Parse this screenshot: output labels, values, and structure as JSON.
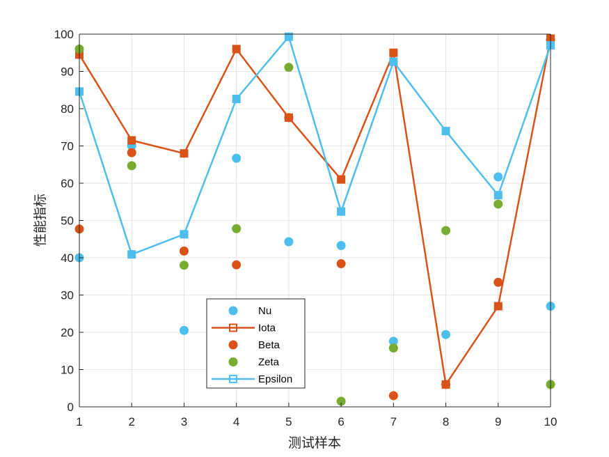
{
  "chart_data": {
    "type": "line",
    "title": "",
    "xlabel": "测试样本",
    "ylabel": "性能指标",
    "x": [
      1,
      2,
      3,
      4,
      5,
      6,
      7,
      8,
      9,
      10
    ],
    "xlim": [
      1,
      10
    ],
    "ylim": [
      0,
      100
    ],
    "xticks": [
      "1",
      "2",
      "3",
      "4",
      "5",
      "6",
      "7",
      "8",
      "9",
      "10"
    ],
    "yticks": [
      "0",
      "10",
      "20",
      "30",
      "40",
      "50",
      "60",
      "70",
      "80",
      "90",
      "100"
    ],
    "grid": true,
    "legend_position": "bottom-center",
    "series": [
      {
        "name": "Nu",
        "style": "scatter",
        "color": "#4DBEEE",
        "values": [
          40,
          70,
          20.5,
          66.7,
          44.3,
          43.3,
          17.6,
          19.4,
          61.7,
          27
        ]
      },
      {
        "name": "Iota",
        "style": "line-square",
        "color": "#D95319",
        "values": [
          94.5,
          71.5,
          68,
          96,
          77.6,
          61,
          95,
          6,
          27,
          98.8
        ]
      },
      {
        "name": "Beta",
        "style": "scatter",
        "color": "#D95319",
        "values": [
          47.7,
          68.2,
          41.8,
          38.1,
          77.6,
          38.4,
          3,
          6,
          33.4,
          98.5
        ]
      },
      {
        "name": "Zeta",
        "style": "scatter",
        "color": "#77AC30",
        "values": [
          96,
          64.7,
          38,
          47.8,
          91.1,
          1.5,
          15.8,
          47.3,
          54.4,
          6
        ]
      },
      {
        "name": "Epsilon",
        "style": "line-square",
        "color": "#4DBEEE",
        "values": [
          84.6,
          40.9,
          46.3,
          82.6,
          99.3,
          52.4,
          92.6,
          74,
          56.8,
          97
        ]
      }
    ]
  }
}
